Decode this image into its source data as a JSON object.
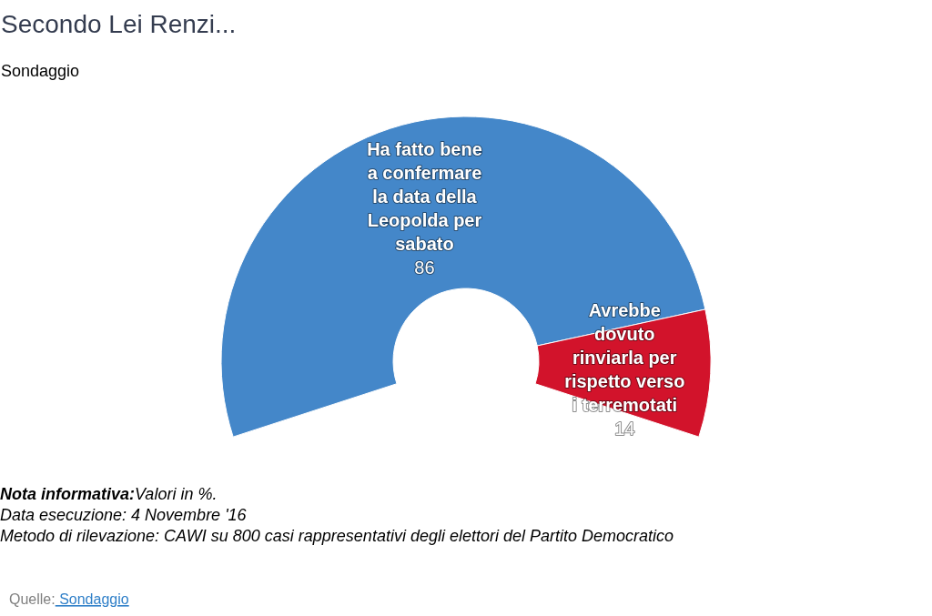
{
  "chart_data": {
    "type": "donut",
    "title": "Secondo Lei Renzi...",
    "subtitle": "Sondaggio",
    "categories": [
      "Ha fatto bene a confermare la data della Leopolda per sabato",
      "Avrebbe dovuto rinviarla per rispetto verso i terremotati"
    ],
    "values": [
      86,
      14
    ],
    "colors": [
      "#4487c9",
      "#d2132b"
    ],
    "data_labels": true,
    "annotations": [
      "Nota informativa:Valori in %.",
      "Data esecuzione: 4 Novembre '16",
      "Metodo di rilevazione: CAWI su 800 casi rappresentativi degli elettori del Partito Democratico",
      "Quelle: Sondaggio"
    ]
  }
}
